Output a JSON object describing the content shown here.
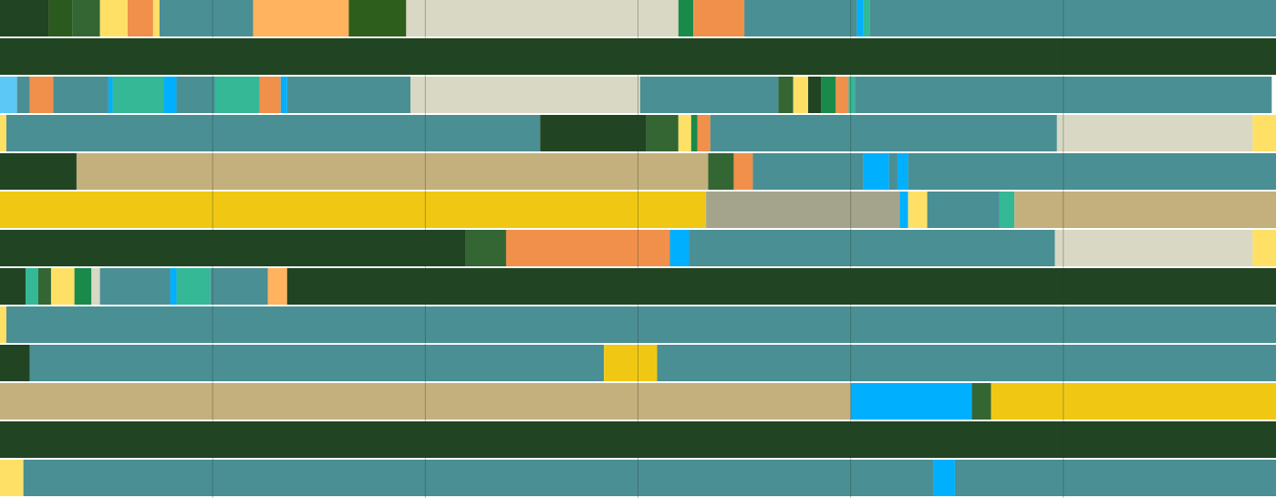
{
  "chart_data": {
    "type": "timeline",
    "xlim": [
      0,
      6
    ],
    "xticks": [
      1,
      2,
      3,
      4,
      5
    ],
    "grid": true,
    "rows": [
      {
        "values": [
          0.23,
          0.11,
          0.13,
          0.13,
          0.12,
          0.03,
          0.44,
          0.45,
          0.27,
          1.28,
          0.07,
          0.24,
          0.53,
          0.03,
          0.03,
          1.92
        ],
        "colors": [
          "#214423",
          "#2b5a1f",
          "#336633",
          "#ffe066",
          "#f0904a",
          "#ffe066",
          "#4a8f94",
          "#ffb35e",
          "#2d5e1c",
          "#d8d8c4",
          "#1a8a4a",
          "#f0904a",
          "#4a8f94",
          "#00b0ff",
          "#34b896",
          "#4a8f94"
        ]
      },
      {
        "values": [
          6
        ],
        "colors": [
          "#214423"
        ]
      },
      {
        "values": [
          0.08,
          0.06,
          0.11,
          0.26,
          0.02,
          0.24,
          0.06,
          0.18,
          0.21,
          0.1,
          0.03,
          0.58,
          1.08,
          0.65,
          0.07,
          0.07,
          0.06,
          0.07,
          0.06,
          0.03,
          1.96
        ],
        "colors": [
          "#5bc8f5",
          "#4a8f94",
          "#f0904a",
          "#4a8f94",
          "#00b0ff",
          "#34b896",
          "#00b0ff",
          "#4a8f94",
          "#34b896",
          "#f0904a",
          "#00b0ff",
          "#4a8f94",
          "#d8d8c4",
          "#4a8f94",
          "#336633",
          "#ffe066",
          "#214423",
          "#1a8a4a",
          "#f0904a",
          "#34b896",
          "#4a8f94"
        ]
      },
      {
        "values": [
          0.03,
          2.51,
          0.5,
          0.15,
          0.06,
          0.03,
          0.06,
          1.63,
          0.92,
          0.12
        ],
        "colors": [
          "#ffe066",
          "#4a8f94",
          "#214423",
          "#336633",
          "#ffe066",
          "#1a8a4a",
          "#f0904a",
          "#4a8f94",
          "#d8d8c4",
          "#ffe066"
        ]
      },
      {
        "values": [
          0.36,
          2.97,
          0.12,
          0.09,
          0.52,
          0.12,
          0.04,
          0.05,
          1.73
        ],
        "colors": [
          "#214423",
          "#c4b07c",
          "#336633",
          "#f0904a",
          "#4a8f94",
          "#00b0ff",
          "#4a8f94",
          "#00b0ff",
          "#4a8f94"
        ]
      },
      {
        "values": [
          3.32,
          0.91,
          0.04,
          0.09,
          0.34,
          0.07,
          1.23
        ],
        "colors": [
          "#f0c814",
          "#a4a48c",
          "#00b0ff",
          "#ffe066",
          "#4a8f94",
          "#34b896",
          "#c4b07c"
        ]
      },
      {
        "values": [
          2.19,
          0.19,
          0.77,
          0.09,
          1.72,
          0.93,
          0.12
        ],
        "colors": [
          "#214423",
          "#336633",
          "#f0904a",
          "#00b0ff",
          "#4a8f94",
          "#d8d8c4",
          "#ffe066"
        ]
      },
      {
        "values": [
          0.12,
          0.06,
          0.06,
          0.11,
          0.08,
          0.04,
          0.33,
          0.03,
          0.16,
          0.27,
          0.09,
          4.65
        ],
        "colors": [
          "#214423",
          "#34b896",
          "#336633",
          "#ffe066",
          "#1a8a4a",
          "#d8d8c4",
          "#4a8f94",
          "#00b0ff",
          "#34b896",
          "#4a8f94",
          "#ffb35e",
          "#214423"
        ]
      },
      {
        "values": [
          0.03,
          5.97
        ],
        "colors": [
          "#ffe066",
          "#4a8f94"
        ]
      },
      {
        "values": [
          0.14,
          2.7,
          0.25,
          2.91
        ],
        "colors": [
          "#214423",
          "#4a8f94",
          "#f0c814",
          "#4a8f94"
        ]
      },
      {
        "values": [
          4.0,
          0.57,
          0.09,
          1.34
        ],
        "colors": [
          "#c4b07c",
          "#00b0ff",
          "#336633",
          "#f0c814"
        ]
      },
      {
        "values": [
          6
        ],
        "colors": [
          "#214423"
        ]
      },
      {
        "values": [
          0.11,
          4.28,
          0.1,
          1.51
        ],
        "colors": [
          "#ffe066",
          "#4a8f94",
          "#00b0ff",
          "#4a8f94"
        ]
      }
    ]
  }
}
